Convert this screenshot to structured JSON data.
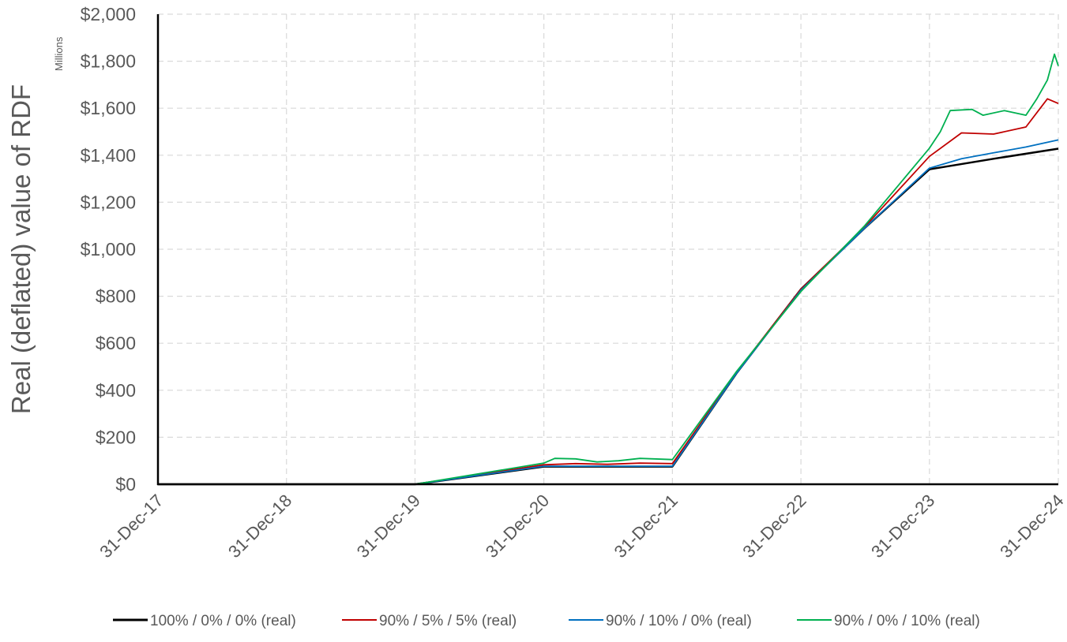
{
  "chart_data": {
    "type": "line",
    "title": "",
    "ylabel": "Real (deflated) value of RDF",
    "yunits": "Millions",
    "xlabel": "",
    "x_ticks": [
      "31-Dec-17",
      "31-Dec-18",
      "31-Dec-19",
      "31-Dec-20",
      "31-Dec-21",
      "31-Dec-22",
      "31-Dec-23",
      "31-Dec-24"
    ],
    "y_ticks": [
      "$0",
      "$200",
      "$400",
      "$600",
      "$800",
      "$1,000",
      "$1,200",
      "$1,400",
      "$1,600",
      "$1,800",
      "$2,000"
    ],
    "xlim": [
      "31-Dec-17",
      "31-Dec-24"
    ],
    "ylim": [
      0,
      2000
    ],
    "grid": true,
    "legend_position": "bottom",
    "series": [
      {
        "name": "100% / 0% / 0% (real)",
        "color": "#000000",
        "points": [
          [
            "31-Dec-17",
            0
          ],
          [
            "31-Dec-18",
            0
          ],
          [
            "31-Dec-19",
            0
          ],
          [
            "31-Dec-20",
            75
          ],
          [
            "30-Jun-21",
            75
          ],
          [
            "31-Dec-21",
            75
          ],
          [
            "30-Jun-22",
            470
          ],
          [
            "31-Dec-22",
            830
          ],
          [
            "30-Jun-23",
            1090
          ],
          [
            "31-Dec-23",
            1340
          ],
          [
            "30-Jun-24",
            1385
          ],
          [
            "31-Dec-24",
            1428
          ]
        ]
      },
      {
        "name": "90% / 5% / 5% (real)",
        "color": "#C00000",
        "points": [
          [
            "31-Dec-17",
            0
          ],
          [
            "31-Dec-18",
            0
          ],
          [
            "31-Dec-19",
            0
          ],
          [
            "31-Dec-20",
            83
          ],
          [
            "31-Mar-21",
            88
          ],
          [
            "30-Jun-21",
            85
          ],
          [
            "30-Sep-21",
            90
          ],
          [
            "31-Dec-21",
            88
          ],
          [
            "30-Jun-22",
            475
          ],
          [
            "31-Dec-22",
            830
          ],
          [
            "30-Jun-23",
            1095
          ],
          [
            "31-Dec-23",
            1395
          ],
          [
            "31-Mar-24",
            1495
          ],
          [
            "30-Jun-24",
            1490
          ],
          [
            "30-Sep-24",
            1520
          ],
          [
            "30-Nov-24",
            1640
          ],
          [
            "31-Dec-24",
            1620
          ]
        ]
      },
      {
        "name": "90% / 10% / 0% (real)",
        "color": "#0070C0",
        "points": [
          [
            "31-Dec-17",
            0
          ],
          [
            "31-Dec-18",
            0
          ],
          [
            "31-Dec-19",
            0
          ],
          [
            "31-Dec-20",
            77
          ],
          [
            "30-Jun-21",
            77
          ],
          [
            "31-Dec-21",
            77
          ],
          [
            "30-Jun-22",
            470
          ],
          [
            "31-Dec-22",
            825
          ],
          [
            "30-Jun-23",
            1090
          ],
          [
            "31-Dec-23",
            1345
          ],
          [
            "31-Mar-24",
            1385
          ],
          [
            "30-Jun-24",
            1410
          ],
          [
            "30-Sep-24",
            1435
          ],
          [
            "31-Dec-24",
            1465
          ]
        ]
      },
      {
        "name": "90% / 0% / 10% (real)",
        "color": "#00B050",
        "points": [
          [
            "31-Dec-17",
            0
          ],
          [
            "31-Dec-18",
            0
          ],
          [
            "31-Dec-19",
            0
          ],
          [
            "31-Dec-20",
            90
          ],
          [
            "31-Jan-21",
            110
          ],
          [
            "31-Mar-21",
            108
          ],
          [
            "31-May-21",
            95
          ],
          [
            "31-Jul-21",
            100
          ],
          [
            "30-Sep-21",
            110
          ],
          [
            "31-Dec-21",
            105
          ],
          [
            "30-Jun-22",
            478
          ],
          [
            "31-Dec-22",
            820
          ],
          [
            "30-Jun-23",
            1100
          ],
          [
            "31-Dec-23",
            1430
          ],
          [
            "31-Jan-24",
            1500
          ],
          [
            "28-Feb-24",
            1590
          ],
          [
            "30-Apr-24",
            1595
          ],
          [
            "31-May-24",
            1570
          ],
          [
            "31-Jul-24",
            1590
          ],
          [
            "30-Sep-24",
            1570
          ],
          [
            "31-Oct-24",
            1640
          ],
          [
            "30-Nov-24",
            1720
          ],
          [
            "20-Dec-24",
            1830
          ],
          [
            "31-Dec-24",
            1780
          ]
        ]
      }
    ]
  }
}
